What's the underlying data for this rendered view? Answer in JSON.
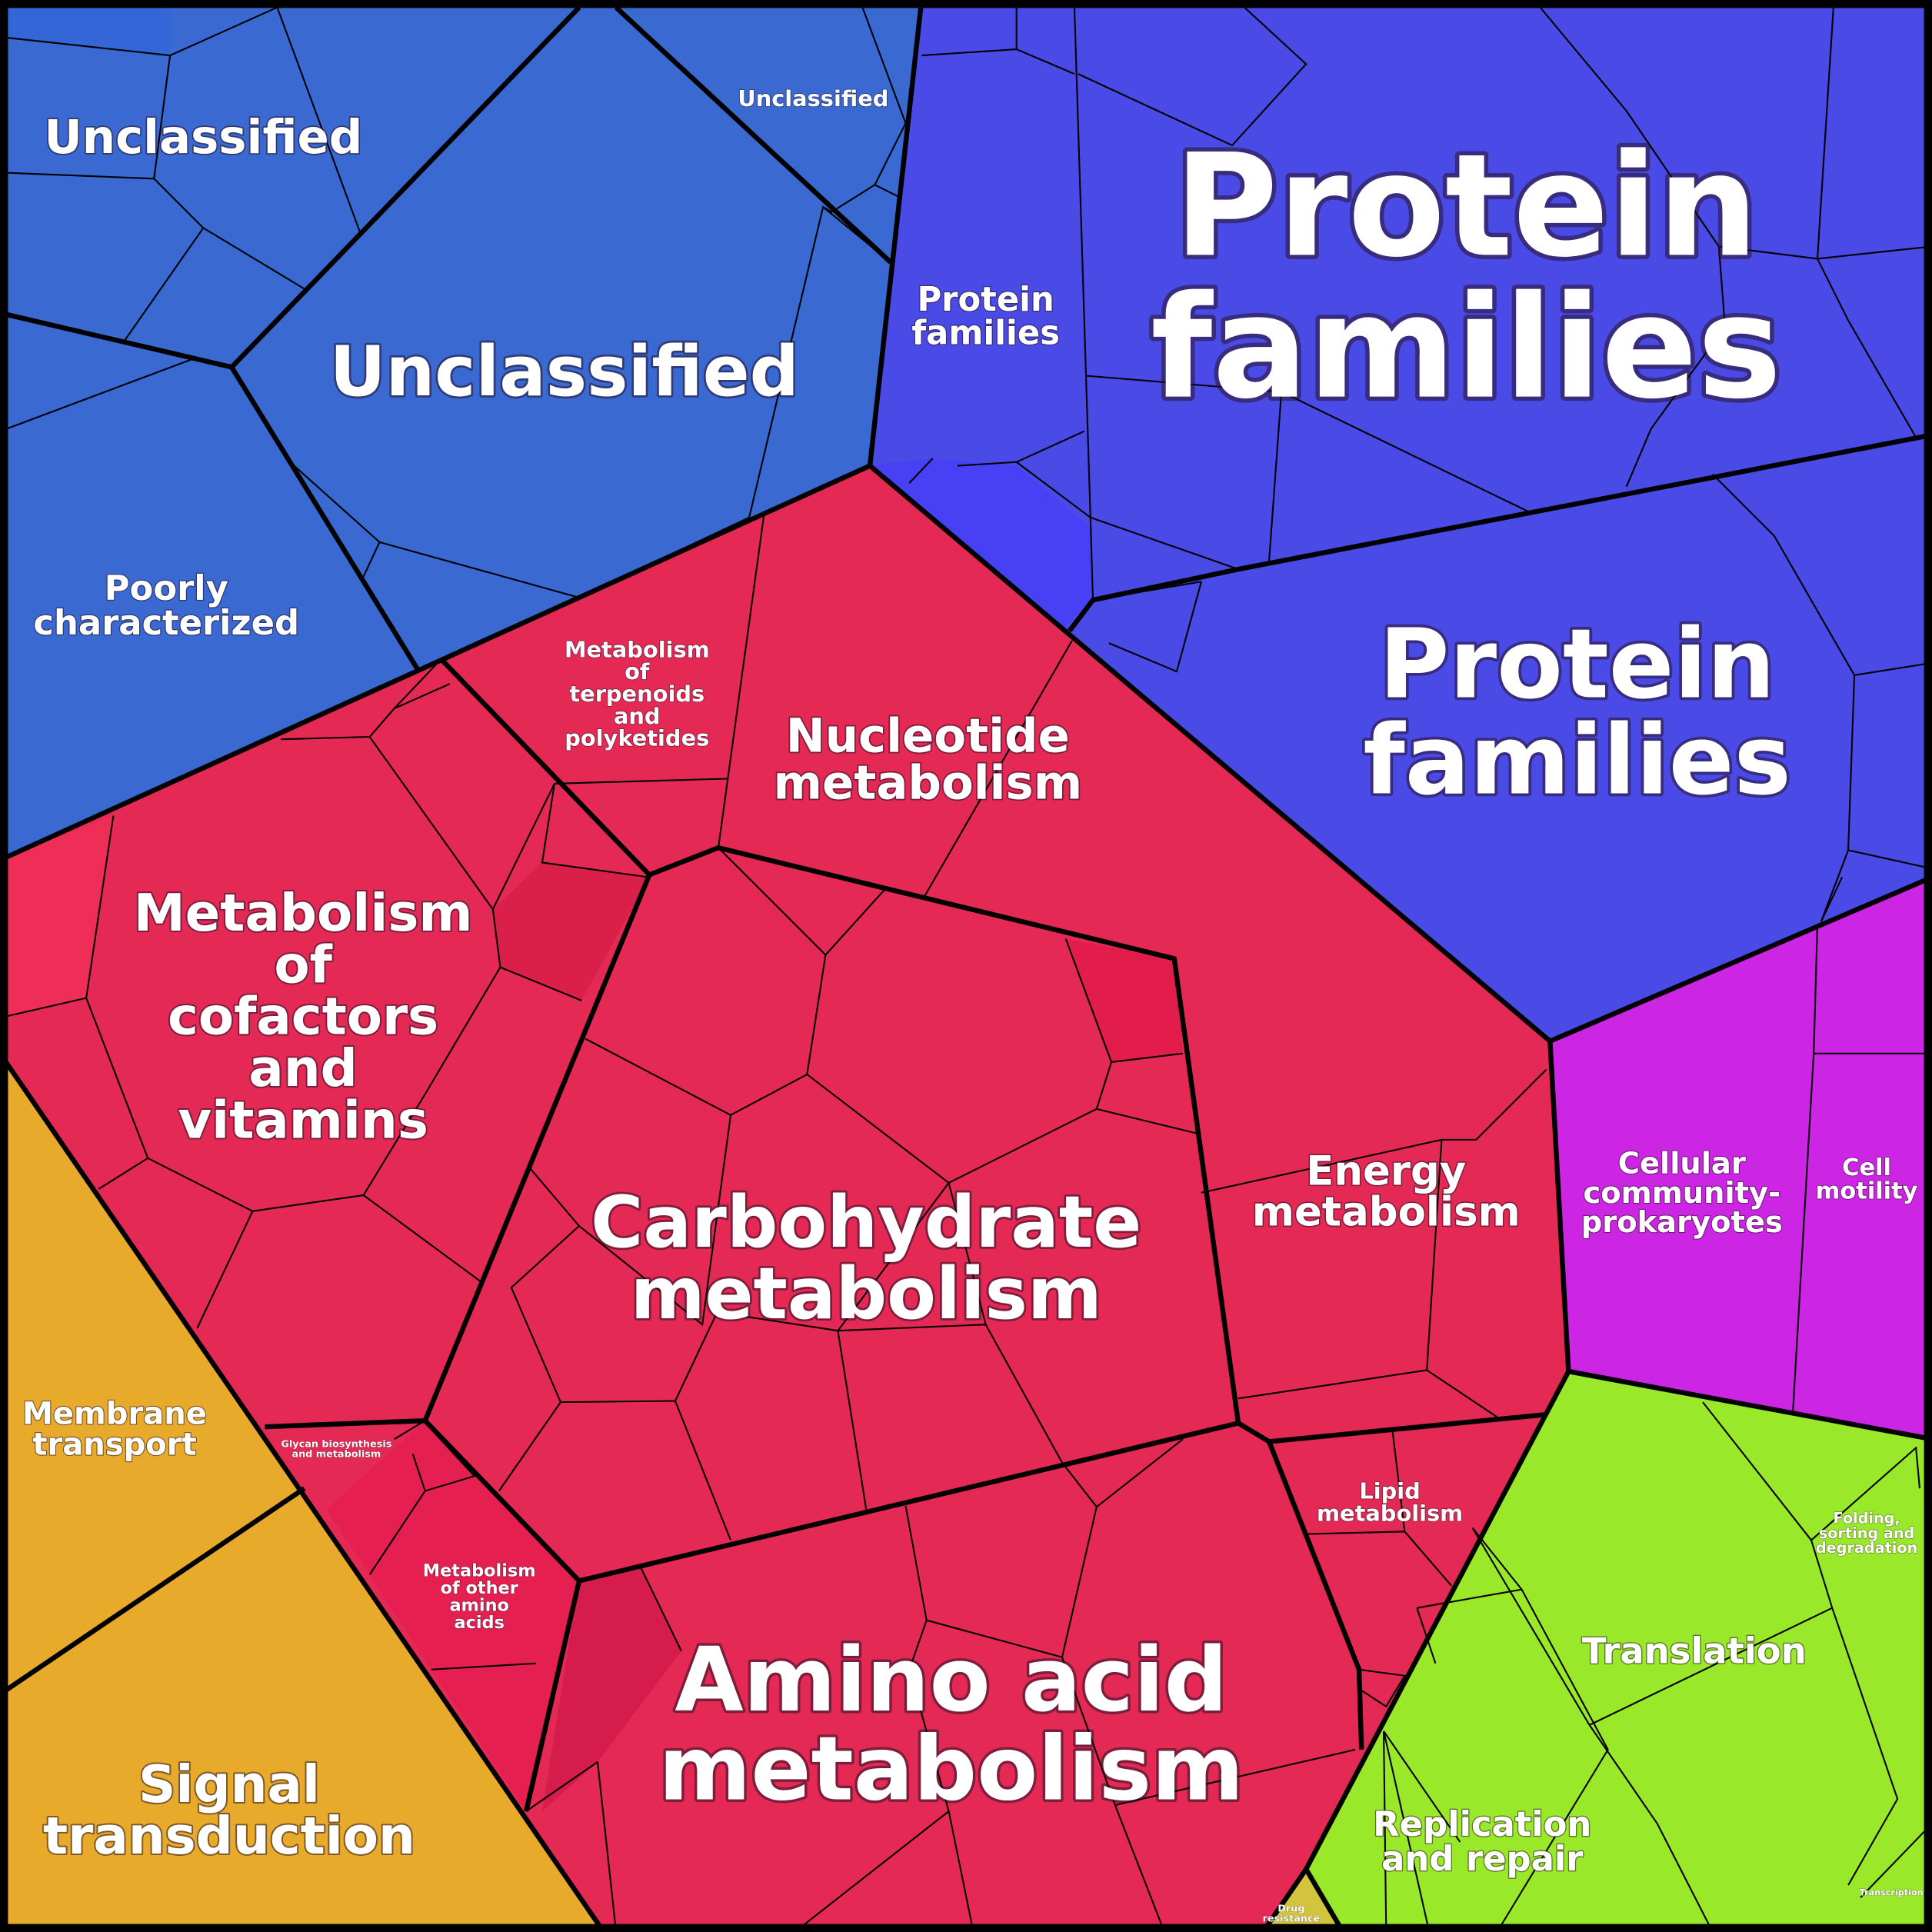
{
  "labels": [
    {
      "lines": [
        "Unclassified"
      ]
    },
    {
      "lines": [
        "Unclassified"
      ]
    },
    {
      "lines": [
        "Unclassified"
      ]
    },
    {
      "lines": [
        "Poorly",
        "characterized"
      ]
    },
    {
      "lines": [
        "Protein",
        "families"
      ]
    },
    {
      "lines": [
        "Protein",
        "families"
      ]
    },
    {
      "lines": [
        "Protein",
        "families"
      ]
    },
    {
      "lines": [
        "Metabolism",
        "of",
        "terpenoids",
        "and",
        "polyketides"
      ]
    },
    {
      "lines": [
        "Nucleotide",
        "metabolism"
      ]
    },
    {
      "lines": [
        "Metabolism",
        "of",
        "cofactors",
        "and",
        "vitamins"
      ]
    },
    {
      "lines": [
        "Carbohydrate",
        "metabolism"
      ]
    },
    {
      "lines": [
        "Energy",
        "metabolism"
      ]
    },
    {
      "lines": [
        "Cellular",
        "community-",
        "prokaryotes"
      ]
    },
    {
      "lines": [
        "Cell",
        "motility"
      ]
    },
    {
      "lines": [
        "Membrane",
        "transport"
      ]
    },
    {
      "lines": [
        "Signal",
        "transduction"
      ]
    },
    {
      "lines": [
        "Glycan biosynthesis",
        "and metabolism"
      ]
    },
    {
      "lines": [
        "Metabolism",
        "of other",
        "amino",
        "acids"
      ]
    },
    {
      "lines": [
        "Lipid",
        "metabolism"
      ]
    },
    {
      "lines": [
        "Amino acid",
        "metabolism"
      ]
    },
    {
      "lines": [
        "Translation"
      ]
    },
    {
      "lines": [
        "Folding,",
        "sorting and",
        "degradation"
      ]
    },
    {
      "lines": [
        "Replication",
        "and repair"
      ]
    },
    {
      "lines": [
        "Drug",
        "resistance"
      ]
    },
    {
      "lines": [
        "Transcription"
      ]
    }
  ]
}
